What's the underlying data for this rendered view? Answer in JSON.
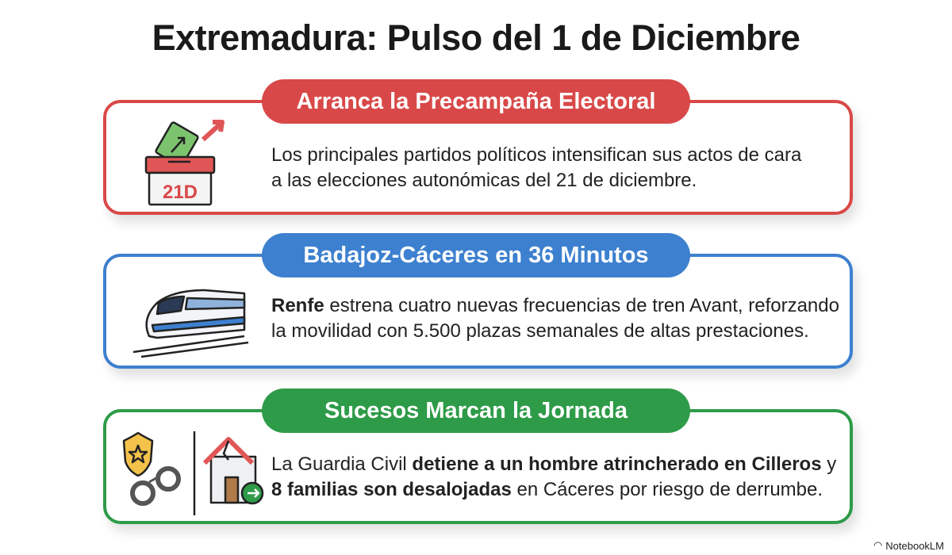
{
  "title": "Extremadura: Pulso del 1 de Diciembre",
  "colors": {
    "red": "#d94848",
    "blue": "#3d80cf",
    "green": "#2e9b48"
  },
  "cards": [
    {
      "heading": "Arranca la Precampaña Electoral",
      "icon": "ballot-box-icon",
      "badge": "21D",
      "lines": [
        [
          {
            "t": "Los principales partidos políticos intensifican sus actos de cara"
          }
        ],
        [
          {
            "t": "a las elecciones autonómicas del 21 de diciembre."
          }
        ]
      ]
    },
    {
      "heading": "Badajoz-Cáceres en 36 Minutos",
      "icon": "train-icon",
      "lines": [
        [
          {
            "t": "Renfe",
            "b": true
          },
          {
            "t": " estrena cuatro nuevas frecuencias de tren Avant, reforzando"
          }
        ],
        [
          {
            "t": "la movilidad con 5.500 plazas semanales de altas prestaciones."
          }
        ]
      ]
    },
    {
      "heading": "Sucesos Marcan la Jornada",
      "icon": "police-badge-handcuffs-icon",
      "icon2": "damaged-house-evacuation-icon",
      "lines": [
        [
          {
            "t": "La Guardia Civil "
          },
          {
            "t": "detiene a un hombre atrincherado en Cilleros",
            "b": true
          },
          {
            "t": " y"
          }
        ],
        [
          {
            "t": "8 familias son desalojadas",
            "b": true
          },
          {
            "t": " en Cáceres por riesgo de derrumbe."
          }
        ]
      ]
    }
  ],
  "footer": "NotebookLM"
}
